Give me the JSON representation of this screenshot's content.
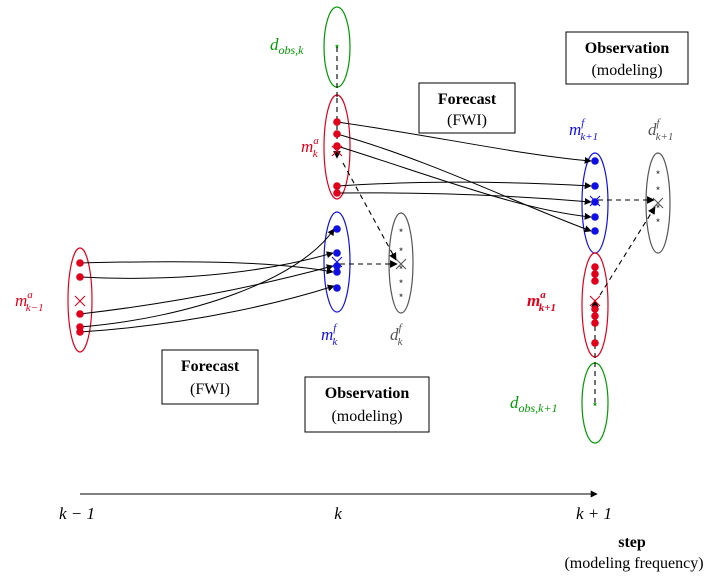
{
  "colors": {
    "analysis": "#e0001b",
    "forecast": "#1010e6",
    "observed": "#009a00",
    "predicted": "#555555",
    "axis": "#000000"
  },
  "ensembles": {
    "m_a_km1": {
      "sym": "m",
      "sup": "a",
      "sub": "k−1"
    },
    "m_f_k": {
      "sym": "m",
      "sup": "f",
      "sub": "k"
    },
    "d_f_k": {
      "sym": "d",
      "sup": "f",
      "sub": "k"
    },
    "d_obs_k": {
      "sym": "d",
      "sub": "obs,k"
    },
    "m_a_k": {
      "sym": "m",
      "sup": "a",
      "sub": "k"
    },
    "m_f_kp1": {
      "sym": "m",
      "sup": "f",
      "sub": "k+1"
    },
    "d_f_kp1": {
      "sym": "d",
      "sup": "f",
      "sub": "k+1"
    },
    "m_a_kp1": {
      "sym": "m",
      "sup": "a",
      "sub": "k+1"
    },
    "d_obs_kp1": {
      "sym": "d",
      "sub": "obs,k+1"
    }
  },
  "boxes": {
    "forecast_1": {
      "title": "Forecast",
      "sub": "(FWI)"
    },
    "observation_1": {
      "title": "Observation",
      "sub": "(modeling)"
    },
    "forecast_2": {
      "title": "Forecast",
      "sub": "(FWI)"
    },
    "observation_2": {
      "title": "Observation",
      "sub": "(modeling)"
    }
  },
  "axis": {
    "ticks": [
      "k − 1",
      "k",
      "k + 1"
    ],
    "title": "step",
    "subtitle": "(modeling frequency)"
  },
  "symbols": {
    "member": "•",
    "observation": "⋆",
    "mean": "×"
  }
}
